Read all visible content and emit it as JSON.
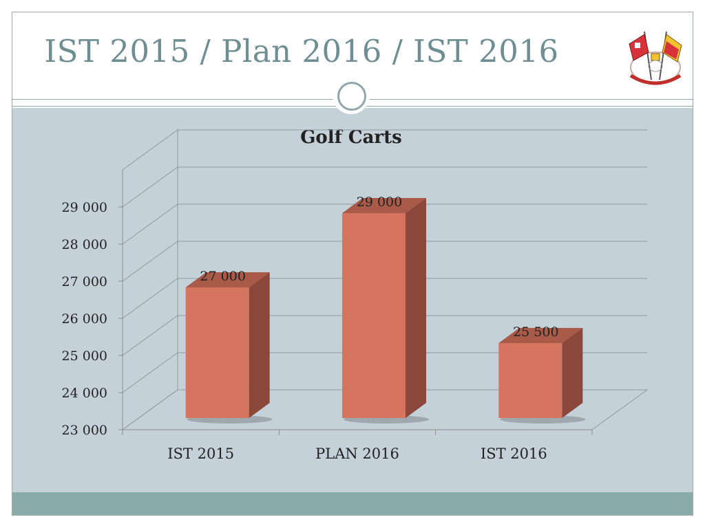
{
  "slide": {
    "title": "IST 2015 / Plan 2016 / IST 2016",
    "logo_icon": "golf-club-crest-with-flags"
  },
  "colors": {
    "background": "#c5d1d8",
    "bar_front": "#d57560",
    "bar_side": "#8b473a",
    "bar_top": "#a95a48",
    "title": "#6e8e94",
    "bottom_band": "#89acab"
  },
  "chart_data": {
    "type": "bar",
    "title": "Golf Carts",
    "categories": [
      "IST 2015",
      "PLAN 2016",
      "IST 2016"
    ],
    "values": [
      27000,
      29000,
      25500
    ],
    "data_labels": [
      "27 000",
      "29 000",
      "25 500"
    ],
    "ylim": [
      23000,
      30000
    ],
    "yticks": [
      23000,
      24000,
      25000,
      26000,
      27000,
      28000,
      29000
    ],
    "ytick_labels": [
      "23 000",
      "24 000",
      "25 000",
      "26 000",
      "27 000",
      "28 000",
      "29 000"
    ],
    "grid": true,
    "style": "3d-column",
    "legend": "none"
  }
}
